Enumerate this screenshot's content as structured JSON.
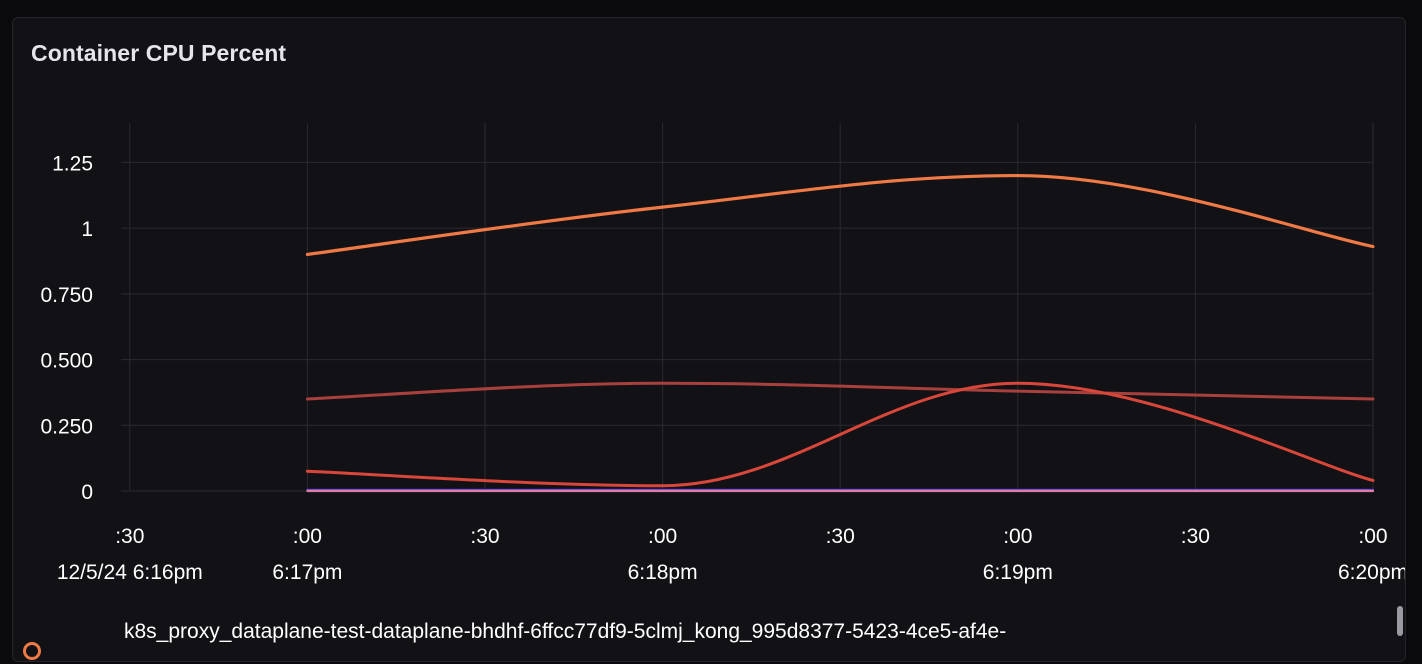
{
  "panel": {
    "title": "Container CPU Percent",
    "legend_label": "k8s_proxy_dataplane-test-dataplane-bhdhf-6ffcc77df9-5clmj_kong_995d8377-5423-4ce5-af4e-",
    "legend_icon": "circle-icon",
    "legend_color": "#f07a45"
  },
  "chart_data": {
    "type": "line",
    "title": "Container CPU Percent",
    "xlabel": "",
    "ylabel": "",
    "ylim": [
      0,
      1.4
    ],
    "xlim_seconds": [
      -45,
      180
    ],
    "grid": true,
    "y_ticks": [
      {
        "value": 0,
        "label": "0"
      },
      {
        "value": 0.25,
        "label": "0.250"
      },
      {
        "value": 0.5,
        "label": "0.500"
      },
      {
        "value": 0.75,
        "label": "0.750"
      },
      {
        "value": 1.0,
        "label": "1"
      },
      {
        "value": 1.25,
        "label": "1.25"
      }
    ],
    "x_ticks": [
      {
        "value": -30,
        "label": ":30",
        "sublabel": "12/5/24 6:16pm"
      },
      {
        "value": 0,
        "label": ":00",
        "sublabel": "6:17pm"
      },
      {
        "value": 30,
        "label": ":30",
        "sublabel": ""
      },
      {
        "value": 60,
        "label": ":00",
        "sublabel": "6:18pm"
      },
      {
        "value": 90,
        "label": ":30",
        "sublabel": ""
      },
      {
        "value": 120,
        "label": ":00",
        "sublabel": "6:19pm"
      },
      {
        "value": 150,
        "label": ":30",
        "sublabel": ""
      },
      {
        "value": 180,
        "label": ":00",
        "sublabel": "6:20pm"
      }
    ],
    "series": [
      {
        "color": "#f07a45",
        "width": 3.2,
        "x": [
          0,
          60,
          120,
          180
        ],
        "y": [
          0.9,
          1.08,
          1.2,
          0.93
        ]
      },
      {
        "color": "#a8403e",
        "width": 3.0,
        "x": [
          0,
          60,
          120,
          180
        ],
        "y": [
          0.35,
          0.41,
          0.38,
          0.35
        ]
      },
      {
        "color": "#d9473a",
        "width": 3.0,
        "x": [
          0,
          60,
          120,
          180
        ],
        "y": [
          0.075,
          0.02,
          0.41,
          0.04
        ]
      },
      {
        "color": "#6a4ad8",
        "width": 2.2,
        "x": [
          0,
          60,
          120,
          180
        ],
        "y": [
          0.004,
          0.004,
          0.004,
          0.004
        ]
      },
      {
        "color": "#e07aa6",
        "width": 2.2,
        "x": [
          0,
          60,
          120,
          180
        ],
        "y": [
          0.0,
          0.0,
          0.0,
          0.0
        ]
      }
    ]
  }
}
